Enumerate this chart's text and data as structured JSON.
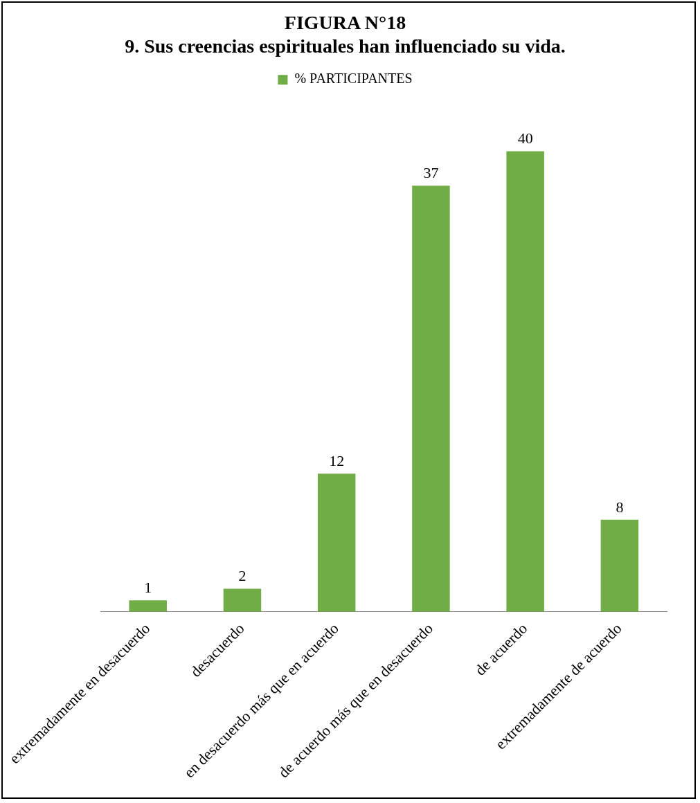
{
  "chart_data": {
    "type": "bar",
    "title": "FIGURA N°18",
    "subtitle": "9. Sus creencias espirituales han influenciado su vida.",
    "categories": [
      "extremadamente en desacuerdo",
      "desacuerdo",
      "en desacuerdo más que en acuerdo",
      "de acuerdo más que en desacuerdo",
      "de acuerdo",
      "extremadamente de acuerdo"
    ],
    "series": [
      {
        "name": "% PARTICIPANTES",
        "color": "#70ad47",
        "values": [
          1,
          2,
          12,
          37,
          40,
          8
        ]
      }
    ],
    "data_labels": true,
    "legend": "top",
    "grid": false
  }
}
